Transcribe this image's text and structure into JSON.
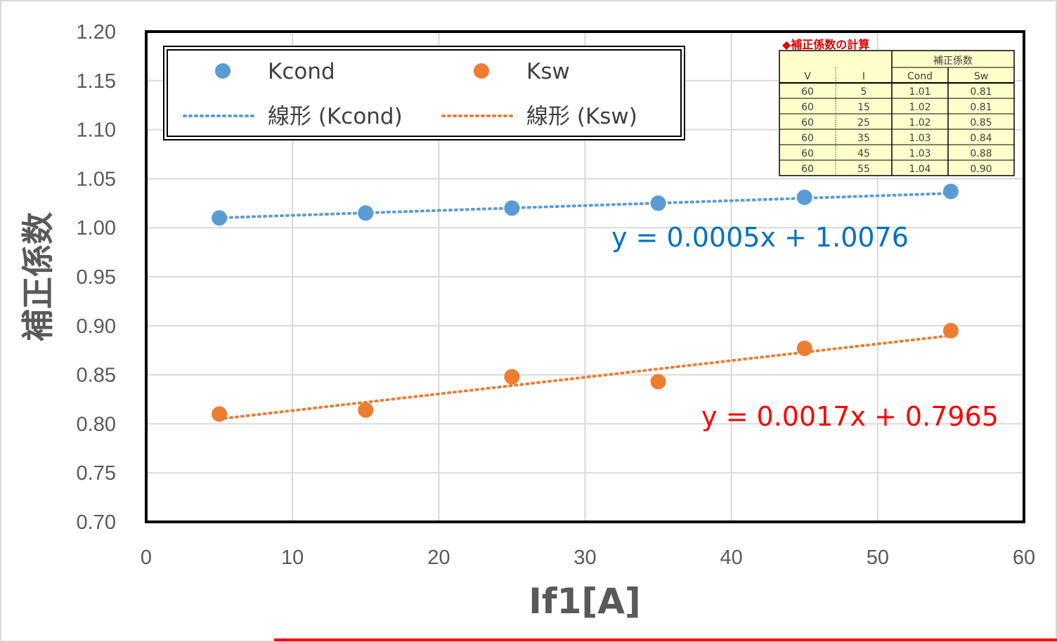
{
  "chart_data": {
    "type": "scatter",
    "xlabel": "If1[A]",
    "ylabel": "補正係数",
    "xlim": [
      0,
      60
    ],
    "ylim": [
      0.7,
      1.2
    ],
    "x_ticks": [
      "0",
      "10",
      "20",
      "30",
      "40",
      "50",
      "60"
    ],
    "y_ticks": [
      "0.70",
      "0.75",
      "0.80",
      "0.85",
      "0.90",
      "0.95",
      "1.00",
      "1.05",
      "1.10",
      "1.15",
      "1.20"
    ],
    "grid": true,
    "legend_position": "top-left",
    "series": [
      {
        "name": "Kcond",
        "color": "#5b9bd5",
        "x": [
          5,
          15,
          25,
          35,
          45,
          55
        ],
        "y": [
          1.01,
          1.015,
          1.02,
          1.025,
          1.031,
          1.037
        ],
        "trendline": {
          "name": "線形 (Kcond)",
          "slope": 0.0005,
          "intercept": 1.0076,
          "x_range": [
            5,
            55
          ]
        },
        "equation": "y = 0.0005x + 1.0076",
        "equation_color": "#0070c0"
      },
      {
        "name": "Ksw",
        "color": "#ed7d31",
        "x": [
          5,
          15,
          25,
          35,
          45,
          55
        ],
        "y": [
          0.81,
          0.814,
          0.848,
          0.843,
          0.877,
          0.895
        ],
        "trendline": {
          "name": "線形 (Ksw)",
          "slope": 0.0017,
          "intercept": 0.7965,
          "x_range": [
            5,
            55
          ]
        },
        "equation": "y = 0.0017x + 0.7965",
        "equation_color": "#ff0000"
      }
    ],
    "inset_table": {
      "title": "◆補正係数の計算",
      "group_header": "補正係数",
      "columns": [
        "V",
        "I",
        "Cond",
        "Sw"
      ],
      "rows": [
        [
          "60",
          "5",
          "1.01",
          "0.81"
        ],
        [
          "60",
          "15",
          "1.02",
          "0.81"
        ],
        [
          "60",
          "25",
          "1.02",
          "0.85"
        ],
        [
          "60",
          "35",
          "1.03",
          "0.84"
        ],
        [
          "60",
          "45",
          "1.03",
          "0.88"
        ],
        [
          "60",
          "55",
          "1.04",
          "0.90"
        ]
      ]
    }
  }
}
